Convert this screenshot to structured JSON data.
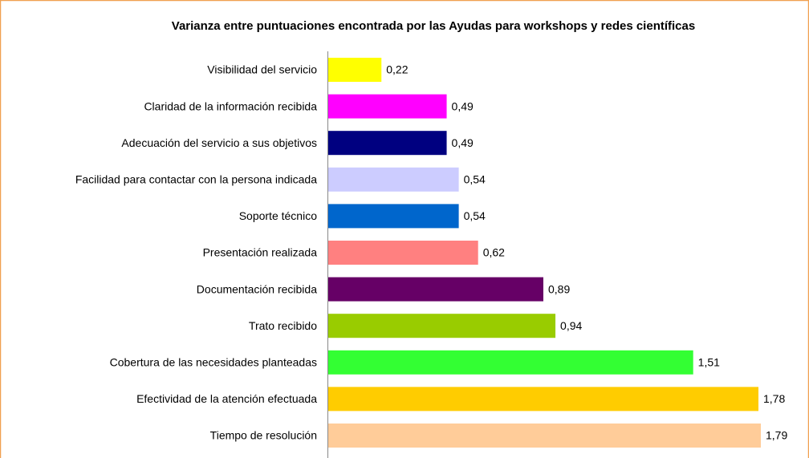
{
  "chart_data": {
    "type": "bar",
    "orientation": "horizontal",
    "title": "Varianza entre  puntuaciones encontrada por las Ayudas para workshops y redes científicas",
    "categories": [
      "Visibilidad del servicio",
      "Claridad de la información recibida",
      "Adecuación del servicio a sus objetivos",
      "Facilidad para contactar con la persona indicada",
      "Soporte técnico",
      "Presentación realizada",
      "Documentación recibida",
      "Trato recibido",
      "Cobertura de las necesidades planteadas",
      "Efectividad de la atención efectuada",
      "Tiempo de resolución"
    ],
    "values": [
      0.22,
      0.49,
      0.49,
      0.54,
      0.54,
      0.62,
      0.89,
      0.94,
      1.51,
      1.78,
      1.79
    ],
    "value_labels": [
      "0,22",
      "0,49",
      "0,49",
      "0,54",
      "0,54",
      "0,62",
      "0,89",
      "0,94",
      "1,51",
      "1,78",
      "1,79"
    ],
    "colors": [
      "#ffff00",
      "#ff00ff",
      "#000080",
      "#ccccff",
      "#0066cc",
      "#ff8080",
      "#660066",
      "#99cc00",
      "#33ff33",
      "#ffcc00",
      "#ffcc99"
    ]
  }
}
